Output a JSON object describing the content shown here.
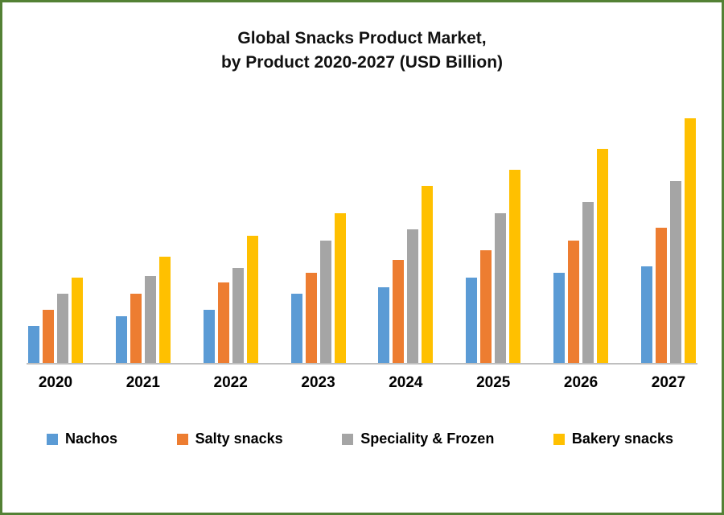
{
  "title": {
    "line1": "Global Snacks Product Market,",
    "line2": "by Product 2020-2027 (USD Billion)"
  },
  "colors": {
    "border_green": "#538135",
    "axis_line": "#bfbfbf",
    "nachos_blue": "#5B9BD5",
    "salty_orange": "#ED7D31",
    "speciality_gray": "#A5A5A5",
    "bakery_yellow": "#FFC000"
  },
  "chart_data": {
    "type": "bar",
    "title": "Global Snacks Product Market, by Product 2020-2027 (USD Billion)",
    "categories": [
      "2020",
      "2021",
      "2022",
      "2023",
      "2024",
      "2025",
      "2026",
      "2027"
    ],
    "series": [
      {
        "name": "Nachos",
        "color": "#5B9BD5",
        "values": [
          23,
          29,
          33,
          43,
          47,
          53,
          56,
          60
        ]
      },
      {
        "name": "Salty snacks",
        "color": "#ED7D31",
        "values": [
          33,
          43,
          50,
          56,
          64,
          70,
          76,
          84
        ]
      },
      {
        "name": "Speciality & Frozen",
        "color": "#A5A5A5",
        "values": [
          43,
          54,
          59,
          76,
          83,
          93,
          100,
          113
        ]
      },
      {
        "name": "Bakery snacks",
        "color": "#FFC000",
        "values": [
          53,
          66,
          79,
          93,
          110,
          120,
          133,
          152
        ]
      }
    ],
    "xlabel": "",
    "ylabel": "",
    "ylim": [
      0,
      160
    ],
    "grid": false,
    "y_axis_visible": false,
    "legend_position": "bottom"
  }
}
